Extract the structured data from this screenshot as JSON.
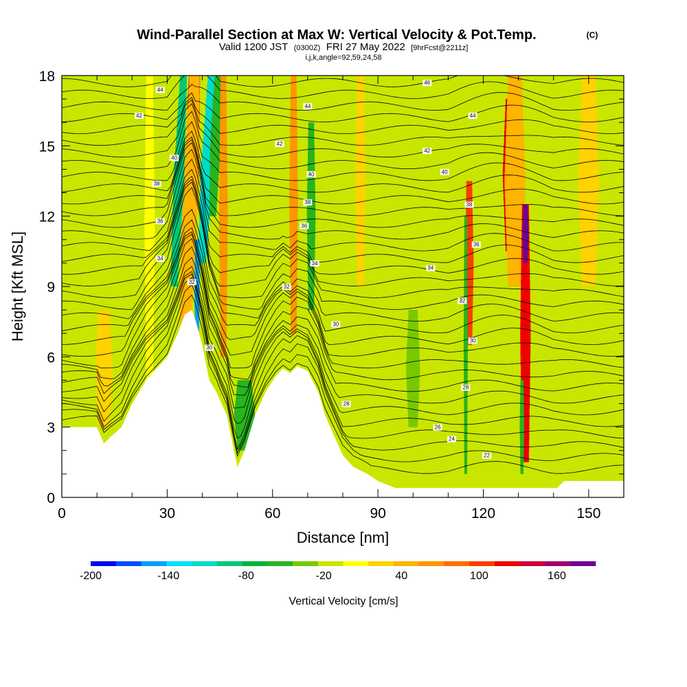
{
  "header": {
    "title": "Wind-Parallel Section at Max W: Vertical Velocity & Pot.Temp.",
    "copyright": "(C)",
    "valid_prefix": "Valid 1200 JST",
    "valid_utc": "(0300Z)",
    "valid_date": "FRI 27 May 2022",
    "forecast": "[9hrFcst@2211z]",
    "indices": "i,j,k,angle=92,59,24,58"
  },
  "chart_data": {
    "type": "heatmap",
    "xlabel": "Distance [nm]",
    "ylabel": "Height [Kft MSL]",
    "xlim": [
      0,
      160
    ],
    "ylim": [
      0,
      18
    ],
    "x_ticks": [
      "0",
      "30",
      "60",
      "90",
      "120",
      "150"
    ],
    "y_ticks": [
      "0",
      "3",
      "6",
      "9",
      "12",
      "15",
      "18"
    ],
    "colorbar": {
      "label": "Vertical Velocity [cm/s]",
      "range": [
        -200,
        190
      ],
      "tick_labels": [
        "-200",
        "-140",
        "-80",
        "-20",
        "40",
        "100",
        "160"
      ],
      "colors": [
        "#0000f0",
        "#0050ff",
        "#00a0ff",
        "#00e0ff",
        "#00dcc8",
        "#00c878",
        "#00b43c",
        "#28b41e",
        "#78c800",
        "#c8e600",
        "#ffff00",
        "#ffd200",
        "#ffb400",
        "#ff9600",
        "#ff6e00",
        "#ff3c00",
        "#f00000",
        "#c8003c",
        "#a0006e",
        "#6e0096"
      ]
    },
    "terrain_kft": [
      [
        0,
        3.0
      ],
      [
        5,
        3.0
      ],
      [
        10,
        3.0
      ],
      [
        12,
        2.3
      ],
      [
        14,
        2.6
      ],
      [
        17,
        3.0
      ],
      [
        20,
        4.0
      ],
      [
        24,
        5.0
      ],
      [
        27,
        5.5
      ],
      [
        30,
        6.0
      ],
      [
        33,
        7.0
      ],
      [
        35,
        7.8
      ],
      [
        37,
        8.0
      ],
      [
        38,
        7.6
      ],
      [
        40,
        6.5
      ],
      [
        42,
        5.0
      ],
      [
        44,
        4.5
      ],
      [
        47,
        3.5
      ],
      [
        49,
        2.0
      ],
      [
        50,
        1.3
      ],
      [
        52,
        2.0
      ],
      [
        55,
        3.5
      ],
      [
        58,
        4.5
      ],
      [
        61,
        5.2
      ],
      [
        63,
        5.5
      ],
      [
        65,
        5.3
      ],
      [
        67,
        5.6
      ],
      [
        70,
        5.4
      ],
      [
        73,
        4.5
      ],
      [
        75,
        3.5
      ],
      [
        77,
        2.8
      ],
      [
        80,
        1.8
      ],
      [
        83,
        1.3
      ],
      [
        87,
        1.0
      ],
      [
        90,
        0.7
      ],
      [
        95,
        0.4
      ],
      [
        110,
        0.4
      ],
      [
        130,
        0.4
      ],
      [
        141,
        0.4
      ],
      [
        143,
        0.7
      ],
      [
        150,
        0.7
      ],
      [
        160,
        0.7
      ]
    ],
    "theta_contours": {
      "levels": [
        22,
        24,
        26,
        28,
        30,
        32,
        34,
        36,
        38,
        40,
        42,
        44,
        46
      ],
      "labels": [
        {
          "text": "46",
          "x": 104,
          "y": 17.7
        },
        {
          "text": "44",
          "x": 28,
          "y": 17.4
        },
        {
          "text": "44",
          "x": 70,
          "y": 16.7
        },
        {
          "text": "44",
          "x": 117,
          "y": 16.3
        },
        {
          "text": "42",
          "x": 22,
          "y": 16.3
        },
        {
          "text": "42",
          "x": 62,
          "y": 15.1
        },
        {
          "text": "42",
          "x": 104,
          "y": 14.8
        },
        {
          "text": "40",
          "x": 32,
          "y": 14.5
        },
        {
          "text": "40",
          "x": 71,
          "y": 13.8
        },
        {
          "text": "40",
          "x": 109,
          "y": 13.9
        },
        {
          "text": "38",
          "x": 27,
          "y": 13.4
        },
        {
          "text": "38",
          "x": 70,
          "y": 12.6
        },
        {
          "text": "38",
          "x": 116,
          "y": 12.5
        },
        {
          "text": "36",
          "x": 28,
          "y": 11.8
        },
        {
          "text": "36",
          "x": 69,
          "y": 11.6
        },
        {
          "text": "36",
          "x": 118,
          "y": 10.8
        },
        {
          "text": "34",
          "x": 28,
          "y": 10.2
        },
        {
          "text": "34",
          "x": 72,
          "y": 10.0
        },
        {
          "text": "34",
          "x": 105,
          "y": 9.8
        },
        {
          "text": "32",
          "x": 37,
          "y": 9.2
        },
        {
          "text": "32",
          "x": 64,
          "y": 9.0
        },
        {
          "text": "32",
          "x": 114,
          "y": 8.4
        },
        {
          "text": "30",
          "x": 78,
          "y": 7.4
        },
        {
          "text": "30",
          "x": 117,
          "y": 6.7
        },
        {
          "text": "30",
          "x": 42,
          "y": 6.4
        },
        {
          "text": "28",
          "x": 115,
          "y": 4.7
        },
        {
          "text": "28",
          "x": 81,
          "y": 4.0
        },
        {
          "text": "26",
          "x": 107,
          "y": 3.0
        },
        {
          "text": "24",
          "x": 111,
          "y": 2.5
        },
        {
          "text": "22",
          "x": 121,
          "y": 1.8
        }
      ]
    },
    "vertical_velocity_features": [
      {
        "x": 36,
        "w": 3.5,
        "z0": 8.5,
        "z1": 18,
        "tilt": 0.24,
        "value": 120
      },
      {
        "x": 36,
        "w": 1.2,
        "z0": 15,
        "z1": 18,
        "tilt": 0.2,
        "value": 150
      },
      {
        "x": 35,
        "w": 4.5,
        "z0": 6.5,
        "z1": 18,
        "tilt": 0.25,
        "value": 40
      },
      {
        "x": 32,
        "w": 3,
        "z0": 9,
        "z1": 18,
        "tilt": 0.3,
        "value": -90
      },
      {
        "x": 38.5,
        "w": 1.5,
        "z0": 6.5,
        "z1": 11,
        "tilt": 0.0,
        "value": -150
      },
      {
        "x": 40,
        "w": 3.5,
        "z0": 10,
        "z1": 18,
        "tilt": 0.35,
        "value": -110
      },
      {
        "x": 43,
        "w": 3,
        "z0": 12,
        "z1": 18,
        "tilt": 0.25,
        "value": -60
      },
      {
        "x": 46,
        "w": 2.5,
        "z0": 6,
        "z1": 18,
        "tilt": 0.0,
        "value": 60
      },
      {
        "x": 25,
        "w": 3,
        "z0": 5,
        "z1": 18,
        "tilt": 0.0,
        "value": 10
      },
      {
        "x": 66,
        "w": 2.5,
        "z0": 7,
        "z1": 18,
        "tilt": 0.0,
        "value": 60
      },
      {
        "x": 71,
        "w": 2.5,
        "z0": 8,
        "z1": 16,
        "tilt": 0.0,
        "value": -60
      },
      {
        "x": 85,
        "w": 3,
        "z0": 9,
        "z1": 18,
        "tilt": 0.0,
        "value": 30
      },
      {
        "x": 116,
        "w": 2.5,
        "z0": 6.5,
        "z1": 13.5,
        "tilt": 0.0,
        "value": 100
      },
      {
        "x": 115,
        "w": 1.2,
        "z0": 1.0,
        "z1": 12,
        "tilt": 0.0,
        "value": -60
      },
      {
        "x": 128,
        "w": 5,
        "z0": 10.5,
        "z1": 17,
        "tilt": 0.0,
        "value": 120
      },
      {
        "x": 129,
        "w": 6,
        "z0": 9,
        "z1": 18,
        "tilt": 0.0,
        "value": 50
      },
      {
        "x": 132,
        "w": 3,
        "z0": 1.5,
        "z1": 12.5,
        "tilt": 0.0,
        "value": 120
      },
      {
        "x": 132,
        "w": 1.8,
        "z0": 10,
        "z1": 12.5,
        "tilt": 0.0,
        "value": 190
      },
      {
        "x": 131,
        "w": 1.3,
        "z0": 1.0,
        "z1": 5,
        "tilt": 0.0,
        "value": -50
      },
      {
        "x": 150,
        "w": 6,
        "z0": 9,
        "z1": 18,
        "tilt": 0.0,
        "value": 30
      },
      {
        "x": 52,
        "w": 6,
        "z0": 2,
        "z1": 5,
        "tilt": 0.0,
        "value": -50
      },
      {
        "x": 100,
        "w": 4,
        "z0": 3,
        "z1": 8,
        "tilt": 0.0,
        "value": -40
      },
      {
        "x": 12,
        "w": 5,
        "z0": 3,
        "z1": 8,
        "tilt": 0.0,
        "value": 20
      }
    ],
    "background_value": -20
  }
}
